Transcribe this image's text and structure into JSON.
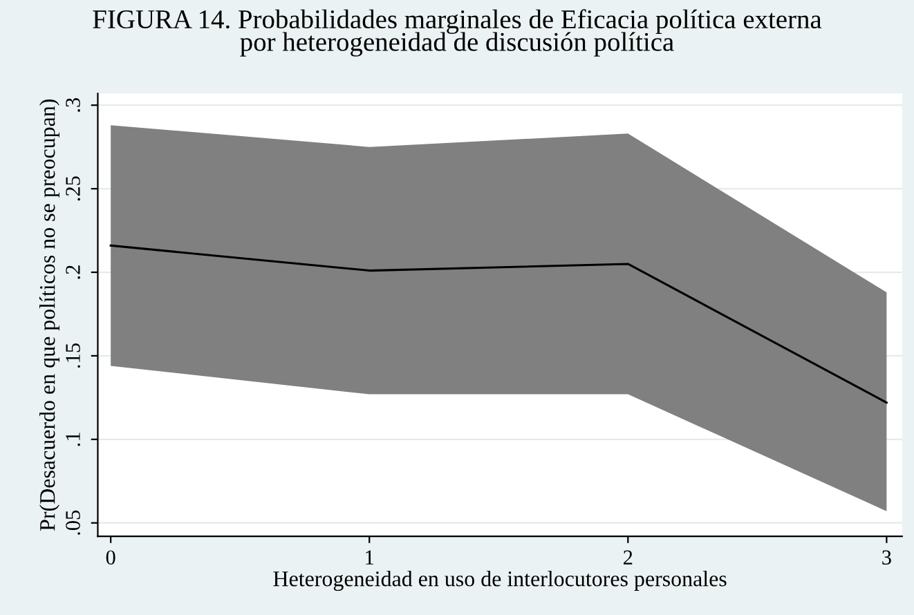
{
  "chart_data": {
    "type": "line",
    "title": "FIGURA 14. Probabilidades marginales de Eficacia política externa\npor heterogeneidad de discusión política",
    "xlabel": "Heterogeneidad en uso de interlocutores personales",
    "ylabel": "Pr(Desacuerdo en que políticos no se preocupan)",
    "x": [
      0,
      1,
      2,
      3
    ],
    "series": [
      {
        "color": "#000000",
        "values": [
          0.216,
          0.201,
          0.205,
          0.122
        ],
        "lower": [
          0.144,
          0.127,
          0.127,
          0.057
        ],
        "upper": [
          0.288,
          0.275,
          0.283,
          0.188
        ]
      }
    ],
    "xlim": [
      -0.05,
      3.06
    ],
    "xticks": [
      0,
      1,
      2,
      3
    ],
    "ylim": [
      0.042,
      0.307
    ],
    "yticks": [
      {
        "value": 0.05,
        "label": ".05"
      },
      {
        "value": 0.1,
        "label": ".1"
      },
      {
        "value": 0.15,
        "label": ".15"
      },
      {
        "value": 0.2,
        "label": ".2"
      },
      {
        "value": 0.25,
        "label": ".25"
      },
      {
        "value": 0.3,
        "label": ".3"
      }
    ],
    "grid": "y",
    "legend": false
  }
}
